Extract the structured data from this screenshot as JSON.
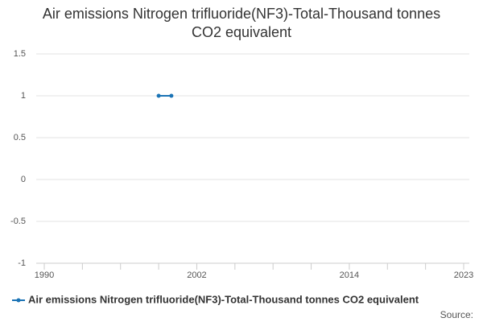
{
  "chart_data": {
    "type": "line",
    "title": "Air emissions Nitrogen trifluoride(NF3)-Total-Thousand tonnes CO2 equivalent",
    "x": [
      1999,
      2000
    ],
    "series": [
      {
        "name": "Air emissions Nitrogen trifluoride(NF3)-Total-Thousand tonnes CO2 equivalent",
        "color": "#1a73b5",
        "values": [
          1,
          1
        ]
      }
    ],
    "xlim": [
      1990,
      2023
    ],
    "xticks": [
      1990,
      2002,
      2014,
      2023
    ],
    "xminorticks": [
      1993,
      1996,
      1999,
      2005,
      2008,
      2011,
      2017,
      2020
    ],
    "ylim": [
      -1,
      1.5
    ],
    "yticks": [
      -1,
      -0.5,
      0,
      0.5,
      1,
      1.5
    ],
    "grid": true,
    "legend": "bottom",
    "source": "Source:"
  }
}
